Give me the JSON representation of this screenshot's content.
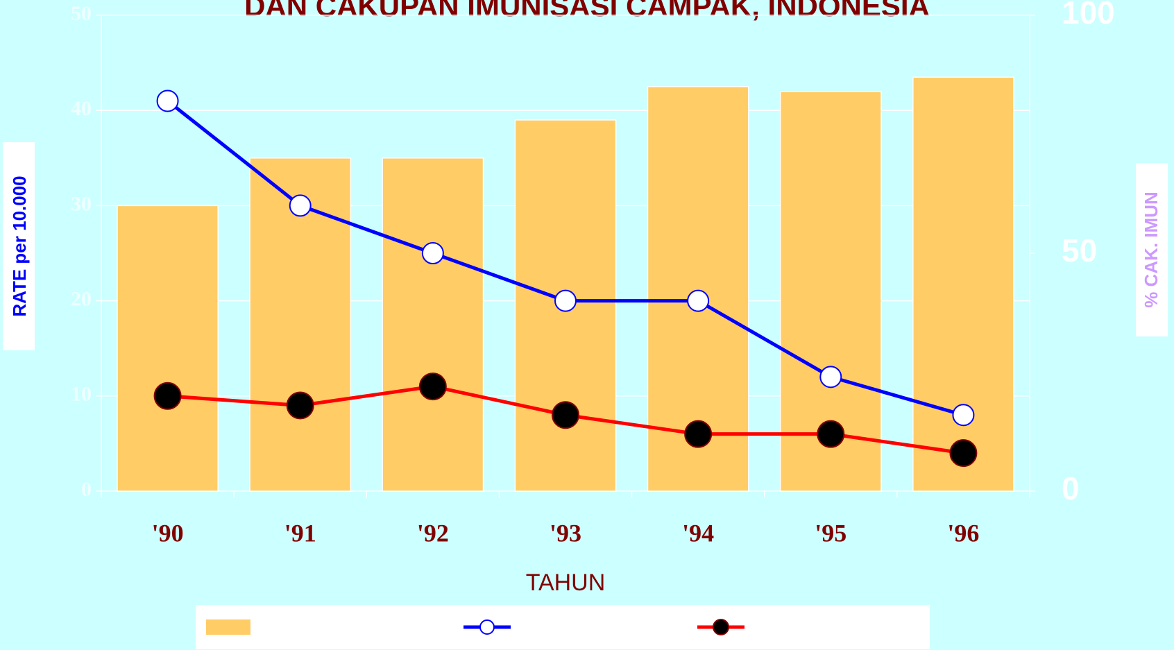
{
  "chart_data": {
    "type": "bar",
    "title": "DAN CAKUPAN IMUNISASI CAMPAK, INDONESIA",
    "x_label": "TAHUN",
    "y_label": "RATE per 10.000",
    "y2_label": "% CAK. IMUN",
    "categories": [
      "'90",
      "'91",
      "'92",
      "'93",
      "'94",
      "'95",
      "'96"
    ],
    "series": [
      {
        "type": "bar",
        "color": "#ffcc66",
        "axis": "y2",
        "values": [
          60,
          70,
          70,
          78,
          85,
          84,
          87
        ]
      },
      {
        "type": "line",
        "color": "#0000ff",
        "marker_fill": "#ffffff",
        "values": [
          41,
          30,
          25,
          20,
          20,
          12,
          8
        ]
      },
      {
        "type": "line",
        "color": "#ff0000",
        "marker_fill": "#000000",
        "values": [
          10,
          9,
          11,
          8,
          6,
          6,
          4
        ]
      }
    ],
    "ylim": [
      0,
      50
    ],
    "yticks": [
      0,
      10,
      20,
      30,
      40,
      50
    ],
    "y2lim": [
      0,
      100
    ],
    "y2ticks": [
      0,
      50,
      100
    ],
    "grid": true,
    "legend": "bottom"
  }
}
